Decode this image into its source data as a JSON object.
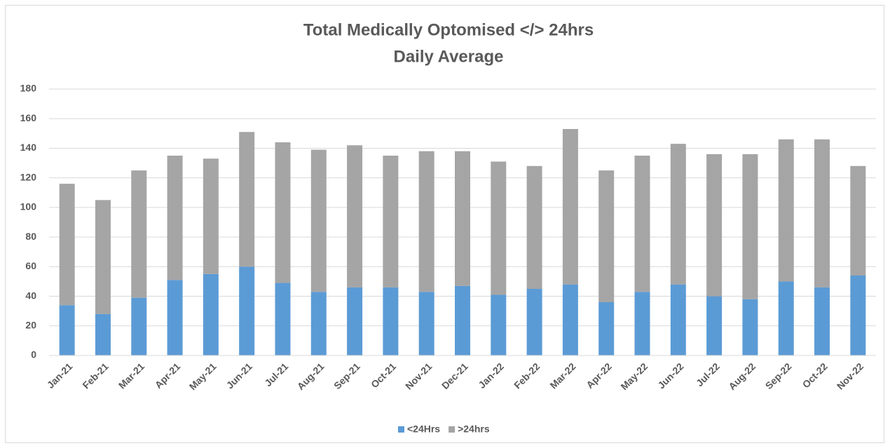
{
  "chart_data": {
    "type": "stacked_bar",
    "title": "Total Medically Optomised </> 24hrs",
    "subtitle": "Daily Average",
    "categories": [
      "Jan-21",
      "Feb-21",
      "Mar-21",
      "Apr-21",
      "May-21",
      "Jun-21",
      "Jul-21",
      "Aug-21",
      "Sep-21",
      "Oct-21",
      "Nov-21",
      "Dec-21",
      "Jan-22",
      "Feb-22",
      "Mar-22",
      "Apr-22",
      "May-22",
      "Jun-22",
      "Jul-22",
      "Aug-22",
      "Sep-22",
      "Oct-22",
      "Nov-22"
    ],
    "series": [
      {
        "name": "<24Hrs",
        "color": "#5b9bd5",
        "values": [
          34,
          28,
          39,
          51,
          55,
          60,
          49,
          43,
          46,
          46,
          43,
          47,
          41,
          45,
          48,
          36,
          43,
          48,
          40,
          38,
          50,
          46,
          54
        ]
      },
      {
        "name": ">24hrs",
        "color": "#a5a5a5",
        "values": [
          82,
          77,
          86,
          84,
          78,
          91,
          95,
          96,
          96,
          89,
          95,
          91,
          90,
          83,
          105,
          89,
          92,
          95,
          96,
          98,
          96,
          100,
          74
        ]
      }
    ],
    "ylim": [
      0,
      180
    ],
    "yticks": [
      0,
      20,
      40,
      60,
      80,
      100,
      120,
      140,
      160,
      180
    ],
    "grid": true,
    "legend": "bottom"
  }
}
